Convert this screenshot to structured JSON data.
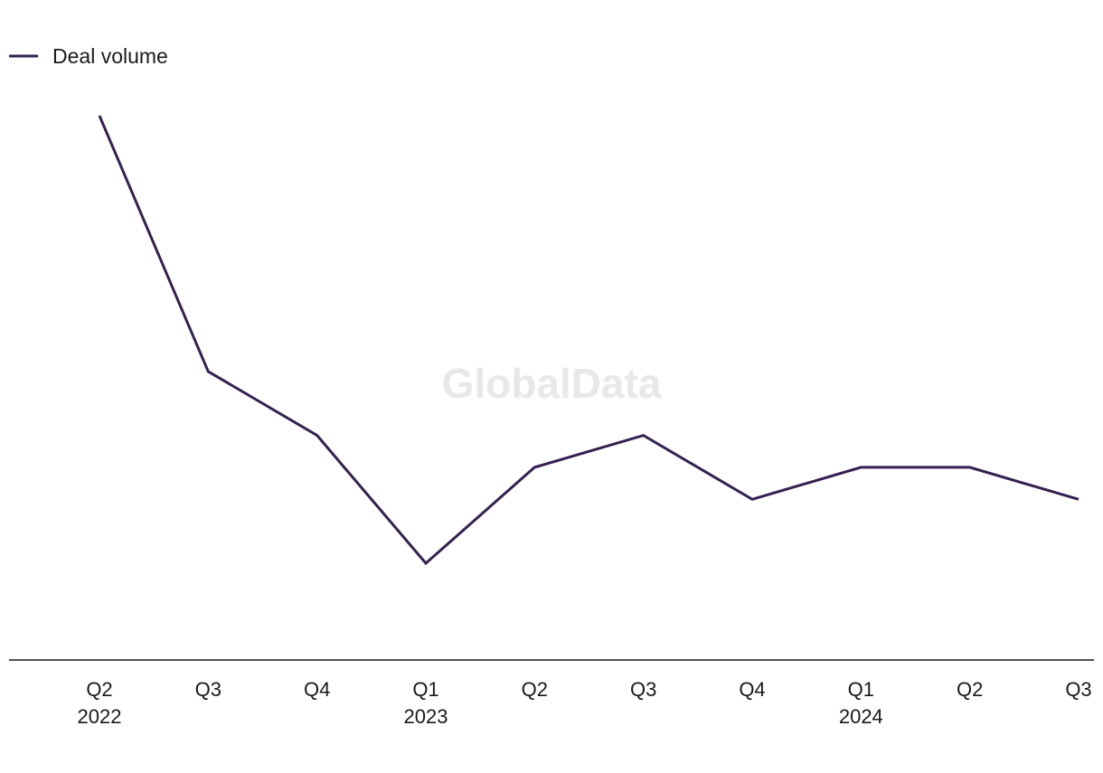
{
  "colors": {
    "series": "#35214f",
    "axis": "#1a1a1a",
    "text": "#1a1a1a",
    "watermark": "#e8e8e8",
    "background": "#ffffff"
  },
  "watermark": "GlobalData",
  "chart_data": {
    "type": "line",
    "title": "",
    "xlabel": "",
    "ylabel": "",
    "grid": false,
    "legend_position": "top-left",
    "categories": [
      "Q2",
      "Q3",
      "Q4",
      "Q1",
      "Q2",
      "Q3",
      "Q4",
      "Q1",
      "Q2",
      "Q3"
    ],
    "category_years": [
      "2022",
      "",
      "",
      "2023",
      "",
      "",
      "",
      "2024",
      "",
      ""
    ],
    "series": [
      {
        "name": "Deal volume",
        "values": [
          43,
          35,
          33,
          29,
          32,
          33,
          31,
          32,
          32,
          31
        ]
      }
    ],
    "ylim": [
      26,
      45
    ]
  }
}
